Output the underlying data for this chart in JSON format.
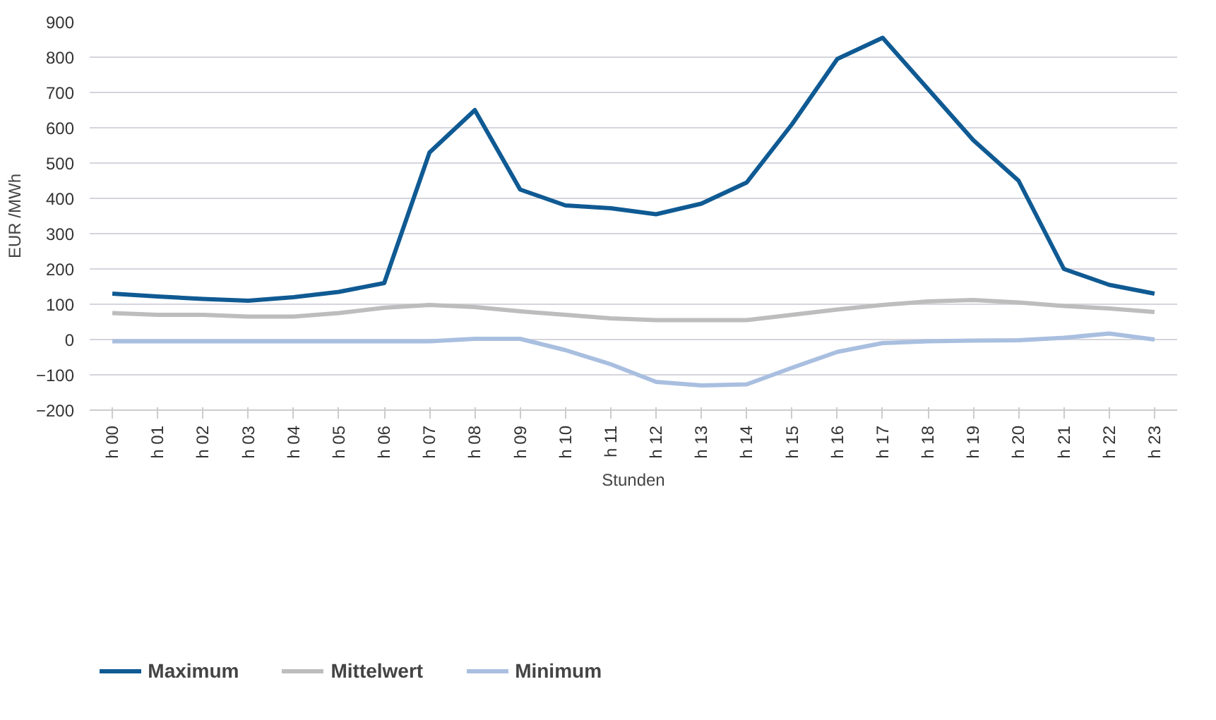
{
  "chart_data": {
    "type": "line",
    "xlabel": "Stunden",
    "ylabel": "EUR /MWh",
    "categories": [
      "h 00",
      "h 01",
      "h 02",
      "h 03",
      "h 04",
      "h 05",
      "h 06",
      "h 07",
      "h 08",
      "h 09",
      "h 10",
      "h 11",
      "h 12",
      "h 13",
      "h 14",
      "h 15",
      "h 16",
      "h 17",
      "h 18",
      "h 19",
      "h 20",
      "h 21",
      "h 22",
      "h 23"
    ],
    "series": [
      {
        "name": "Maximum",
        "color": "#0f5a93",
        "values": [
          130,
          122,
          115,
          110,
          120,
          135,
          160,
          530,
          650,
          425,
          380,
          372,
          355,
          385,
          445,
          610,
          795,
          855,
          710,
          565,
          450,
          200,
          155,
          130
        ]
      },
      {
        "name": "Mittelwert",
        "color": "#bdbdbd",
        "values": [
          75,
          70,
          70,
          65,
          65,
          75,
          90,
          98,
          92,
          80,
          70,
          60,
          55,
          55,
          55,
          70,
          85,
          98,
          108,
          112,
          105,
          95,
          88,
          78
        ]
      },
      {
        "name": "Minimum",
        "color": "#a9bfe0",
        "values": [
          -5,
          -5,
          -5,
          -5,
          -5,
          -5,
          -5,
          -5,
          2,
          2,
          -30,
          -70,
          -120,
          -130,
          -127,
          -80,
          -35,
          -10,
          -5,
          -3,
          -2,
          5,
          17,
          0
        ]
      }
    ],
    "ylim": [
      -200,
      900
    ],
    "yticks": [
      -200,
      -100,
      0,
      100,
      200,
      300,
      400,
      500,
      600,
      700,
      800,
      900
    ],
    "grid": "y",
    "legend": "bottom",
    "marker": "none",
    "line_style": "solid"
  }
}
